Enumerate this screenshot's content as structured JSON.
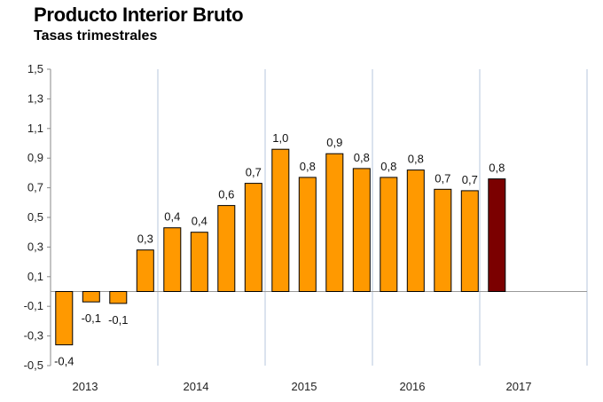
{
  "chart_data": {
    "type": "bar",
    "title": "Producto Interior Bruto",
    "subtitle": "Tasas trimestrales",
    "xlabel": "",
    "ylabel": "",
    "ylim": [
      -0.5,
      1.5
    ],
    "yticks": [
      "-0,5",
      "-0,3",
      "-0,1",
      "0,1",
      "0,3",
      "0,5",
      "0,7",
      "0,9",
      "1,1",
      "1,3",
      "1,5"
    ],
    "year_labels": [
      "2013",
      "2014",
      "2015",
      "2016",
      "2017"
    ],
    "values": [
      -0.36,
      -0.07,
      -0.08,
      0.28,
      0.43,
      0.4,
      0.58,
      0.73,
      0.96,
      0.77,
      0.93,
      0.83,
      0.77,
      0.82,
      0.69,
      0.68,
      0.76
    ],
    "labels": [
      "-0,4",
      "-0,1",
      "-0,1",
      "0,3",
      "0,4",
      "0,4",
      "0,6",
      "0,7",
      "1,0",
      "0,8",
      "0,9",
      "0,8",
      "0,8",
      "0,8",
      "0,7",
      "0,7",
      "0,8"
    ],
    "colors": {
      "bar": "#ff9900",
      "highlight": "#7b0000",
      "border": "#000000",
      "grid": "#b7c7dd"
    },
    "highlight_index": 16,
    "grid": "vertical year separators",
    "legend": "none"
  }
}
